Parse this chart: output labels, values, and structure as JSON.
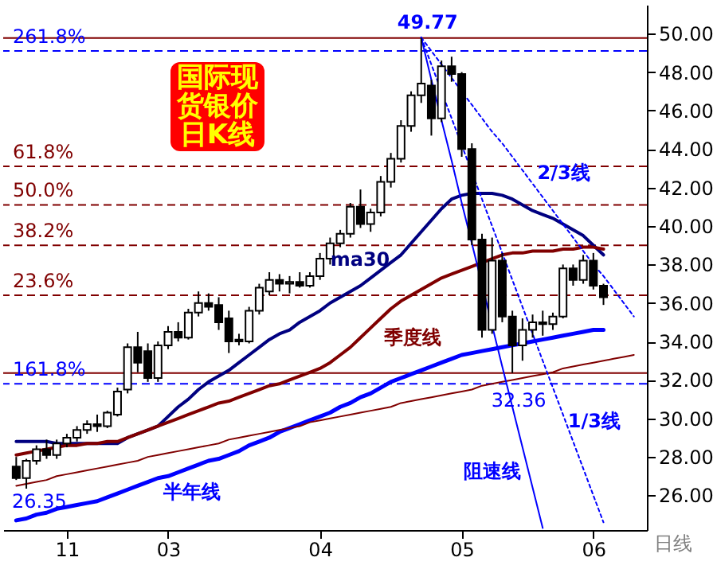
{
  "chart_data": {
    "type": "candlestick",
    "title": "国际现货银价日K线",
    "xlabel": "日线",
    "categories": [
      null,
      null,
      null,
      null,
      null,
      "11",
      null,
      null,
      null,
      null,
      null,
      null,
      null,
      null,
      null,
      "03",
      null,
      null,
      null,
      null,
      null,
      null,
      null,
      null,
      null,
      null,
      null,
      null,
      null,
      null,
      "04",
      null,
      null,
      null,
      null,
      null,
      null,
      null,
      null,
      null,
      null,
      null,
      null,
      null,
      "05",
      null,
      null,
      null,
      null,
      null,
      null,
      null,
      null,
      null,
      null,
      null,
      null,
      "06",
      null,
      null,
      null,
      null
    ],
    "ohlc": [
      [
        27.5,
        28.0,
        26.8,
        26.9
      ],
      [
        26.9,
        27.9,
        26.35,
        27.8
      ],
      [
        27.8,
        28.6,
        27.6,
        28.4
      ],
      [
        28.4,
        28.9,
        27.9,
        28.1
      ],
      [
        28.1,
        28.9,
        27.9,
        28.7
      ],
      [
        28.7,
        29.2,
        28.5,
        29.0
      ],
      [
        29.0,
        29.6,
        28.8,
        29.4
      ],
      [
        29.4,
        29.9,
        29.2,
        29.7
      ],
      [
        29.7,
        30.2,
        29.3,
        29.6
      ],
      [
        29.6,
        30.4,
        29.5,
        30.3
      ],
      [
        30.2,
        31.6,
        30.1,
        31.4
      ],
      [
        31.5,
        33.9,
        31.3,
        33.7
      ],
      [
        33.7,
        34.5,
        32.4,
        32.9
      ],
      [
        33.5,
        33.9,
        31.9,
        32.1
      ],
      [
        32.1,
        34.0,
        31.9,
        33.8
      ],
      [
        33.8,
        34.8,
        33.6,
        34.5
      ],
      [
        34.5,
        35.0,
        34.0,
        34.2
      ],
      [
        34.2,
        35.7,
        34.1,
        35.5
      ],
      [
        35.5,
        36.6,
        35.3,
        36.0
      ],
      [
        36.0,
        36.5,
        35.6,
        35.8
      ],
      [
        35.9,
        36.3,
        34.6,
        35.0
      ],
      [
        35.2,
        35.6,
        33.4,
        34.0
      ],
      [
        34.1,
        34.4,
        33.8,
        34.0
      ],
      [
        34.0,
        35.8,
        33.9,
        35.6
      ],
      [
        35.6,
        37.0,
        35.4,
        36.8
      ],
      [
        36.6,
        37.6,
        36.4,
        37.2
      ],
      [
        37.2,
        37.5,
        36.6,
        37.0
      ],
      [
        37.0,
        37.4,
        36.5,
        37.1
      ],
      [
        37.1,
        37.6,
        36.8,
        36.9
      ],
      [
        36.9,
        37.6,
        36.8,
        37.4
      ],
      [
        37.4,
        38.6,
        37.2,
        38.3
      ],
      [
        38.3,
        39.4,
        38.0,
        39.1
      ],
      [
        39.1,
        39.8,
        38.9,
        39.6
      ],
      [
        39.6,
        41.2,
        39.4,
        41.0
      ],
      [
        41.0,
        41.9,
        39.9,
        40.1
      ],
      [
        40.1,
        40.9,
        39.7,
        40.7
      ],
      [
        40.7,
        42.6,
        40.5,
        42.3
      ],
      [
        42.3,
        43.8,
        42.0,
        43.5
      ],
      [
        43.5,
        45.5,
        43.3,
        45.2
      ],
      [
        45.2,
        47.0,
        44.9,
        46.8
      ],
      [
        46.8,
        49.77,
        46.4,
        47.4
      ],
      [
        47.3,
        47.6,
        44.7,
        45.6
      ],
      [
        45.6,
        48.6,
        45.4,
        48.3
      ],
      [
        48.3,
        48.8,
        47.5,
        47.9
      ],
      [
        47.9,
        48.0,
        43.6,
        44.0
      ],
      [
        44.0,
        44.3,
        39.0,
        39.3
      ],
      [
        39.3,
        39.6,
        34.2,
        34.6
      ],
      [
        34.6,
        39.4,
        34.4,
        38.2
      ],
      [
        38.2,
        38.6,
        35.0,
        35.3
      ],
      [
        35.3,
        35.6,
        32.36,
        33.8
      ],
      [
        33.8,
        35.2,
        33.0,
        34.6
      ],
      [
        34.6,
        35.4,
        34.2,
        35.0
      ],
      [
        35.0,
        35.6,
        34.3,
        34.9
      ],
      [
        34.9,
        35.5,
        34.6,
        35.3
      ],
      [
        35.3,
        38.0,
        35.2,
        37.8
      ],
      [
        37.8,
        38.0,
        36.9,
        37.2
      ],
      [
        37.2,
        38.5,
        37.0,
        38.2
      ],
      [
        38.2,
        38.6,
        36.7,
        36.9
      ],
      [
        36.9,
        37.0,
        35.9,
        36.3
      ],
      null,
      null,
      null
    ],
    "ylim": [
      24.2,
      51.5
    ],
    "yticks": [
      {
        "value": 26,
        "label": "26.00"
      },
      {
        "value": 28,
        "label": "28.00"
      },
      {
        "value": 30,
        "label": "30.00"
      },
      {
        "value": 32,
        "label": "32.00"
      },
      {
        "value": 34,
        "label": "34.00"
      },
      {
        "value": 36,
        "label": "36.00"
      },
      {
        "value": 38,
        "label": "38.00"
      },
      {
        "value": 40,
        "label": "40.00"
      },
      {
        "value": 42,
        "label": "42.00"
      },
      {
        "value": 44,
        "label": "44.00"
      },
      {
        "value": 46,
        "label": "46.00"
      },
      {
        "value": 48,
        "label": "48.00"
      },
      {
        "value": 50,
        "label": "50.00"
      }
    ],
    "series": [
      {
        "name": "ma30",
        "type": "line",
        "color": "#000080",
        "values": [
          28.8,
          28.8,
          28.8,
          28.8,
          28.7,
          28.7,
          28.7,
          28.7,
          28.7,
          28.7,
          28.7,
          29.0,
          29.2,
          29.4,
          29.6,
          30.1,
          30.6,
          31.0,
          31.5,
          31.9,
          32.2,
          32.5,
          32.9,
          33.3,
          33.7,
          34.1,
          34.4,
          34.6,
          35.0,
          35.3,
          35.6,
          36.0,
          36.3,
          36.6,
          36.9,
          37.3,
          37.7,
          38.1,
          38.5,
          39.1,
          39.7,
          40.3,
          40.9,
          41.4,
          41.6,
          41.7,
          41.7,
          41.7,
          41.6,
          41.4,
          41.1,
          40.8,
          40.6,
          40.4,
          40.1,
          39.8,
          39.5,
          39.0,
          38.5,
          null,
          null,
          null
        ]
      },
      {
        "name": "季度线",
        "type": "line",
        "color": "#800000",
        "values": [
          28.1,
          28.2,
          28.3,
          28.4,
          28.5,
          28.6,
          28.6,
          28.7,
          28.7,
          28.8,
          28.8,
          29.0,
          29.2,
          29.4,
          29.6,
          29.8,
          30.0,
          30.2,
          30.4,
          30.6,
          30.8,
          30.9,
          31.1,
          31.3,
          31.5,
          31.7,
          31.8,
          32.0,
          32.2,
          32.4,
          32.6,
          32.9,
          33.3,
          33.7,
          34.2,
          34.7,
          35.2,
          35.7,
          36.1,
          36.4,
          36.7,
          37.0,
          37.3,
          37.5,
          37.7,
          37.9,
          38.1,
          38.3,
          38.5,
          38.6,
          38.6,
          38.7,
          38.7,
          38.7,
          38.8,
          38.8,
          38.9,
          38.9,
          38.8,
          null,
          null,
          null
        ]
      },
      {
        "name": "半年线",
        "type": "line",
        "color": "#0000ff",
        "values": [
          24.7,
          24.8,
          25.0,
          25.1,
          25.3,
          25.4,
          25.5,
          25.6,
          25.7,
          25.9,
          26.1,
          26.3,
          26.5,
          26.7,
          26.9,
          27.0,
          27.2,
          27.4,
          27.6,
          27.8,
          27.9,
          28.1,
          28.3,
          28.6,
          28.8,
          29.0,
          29.3,
          29.5,
          29.7,
          29.9,
          30.1,
          30.3,
          30.6,
          30.8,
          31.1,
          31.3,
          31.6,
          31.9,
          32.1,
          32.3,
          32.5,
          32.7,
          32.9,
          33.1,
          33.3,
          33.4,
          33.5,
          33.6,
          33.7,
          33.8,
          33.9,
          34.0,
          34.1,
          34.2,
          34.3,
          34.4,
          34.5,
          34.6,
          34.6,
          null,
          null,
          null
        ]
      },
      {
        "type": "line",
        "color": "#800000",
        "values": [
          26.5,
          26.6,
          26.7,
          26.8,
          27.0,
          27.1,
          27.2,
          27.3,
          27.4,
          27.5,
          27.6,
          27.7,
          27.8,
          28.0,
          28.1,
          28.2,
          28.3,
          28.4,
          28.5,
          28.6,
          28.7,
          28.9,
          29.0,
          29.1,
          29.2,
          29.3,
          29.4,
          29.5,
          29.6,
          29.8,
          29.9,
          30.0,
          30.1,
          30.2,
          30.3,
          30.4,
          30.5,
          30.6,
          30.8,
          30.9,
          31.0,
          31.1,
          31.2,
          31.3,
          31.4,
          31.5,
          31.7,
          31.8,
          31.9,
          32.0,
          32.1,
          32.2,
          32.3,
          32.4,
          32.6,
          32.7,
          32.8,
          32.9,
          33.0,
          33.1,
          33.2,
          33.3
        ]
      },
      {
        "name": "阻速线",
        "type": "line",
        "color": "#0000ff",
        "line_style": "solid",
        "values": [
          null,
          null,
          null,
          null,
          null,
          null,
          null,
          null,
          null,
          null,
          null,
          null,
          null,
          null,
          null,
          null,
          null,
          null,
          null,
          null,
          null,
          null,
          null,
          null,
          null,
          null,
          null,
          null,
          null,
          null,
          null,
          null,
          null,
          null,
          null,
          null,
          null,
          null,
          null,
          null,
          49.8,
          47.6,
          45.5,
          43.4,
          41.2,
          39.1,
          null,
          null,
          32.7,
          30.6,
          28.5,
          26.4,
          24.3,
          null,
          null,
          null,
          null,
          null,
          null,
          null,
          null,
          null
        ]
      },
      {
        "name": "1/3线",
        "type": "line",
        "color": "#0000ff",
        "line_style": "dotted",
        "values": [
          null,
          null,
          null,
          null,
          null,
          null,
          null,
          null,
          null,
          null,
          null,
          null,
          null,
          null,
          null,
          null,
          null,
          null,
          null,
          null,
          null,
          null,
          null,
          null,
          null,
          null,
          null,
          null,
          null,
          null,
          null,
          null,
          null,
          null,
          null,
          null,
          null,
          null,
          null,
          null,
          49.8,
          48.4,
          47.0,
          45.6,
          44.2,
          null,
          41.4,
          40.0,
          38.6,
          37.2,
          35.8,
          34.4,
          33.0,
          31.6,
          30.2,
          28.8,
          27.4,
          26.0,
          24.6,
          null,
          null,
          null
        ]
      },
      {
        "name": "2/3线",
        "type": "line",
        "color": "#0000ff",
        "line_style": "dotted",
        "values": [
          null,
          null,
          null,
          null,
          null,
          null,
          null,
          null,
          null,
          null,
          null,
          null,
          null,
          null,
          null,
          null,
          null,
          null,
          null,
          null,
          null,
          null,
          null,
          null,
          null,
          null,
          null,
          null,
          null,
          null,
          null,
          null,
          null,
          null,
          null,
          null,
          null,
          null,
          null,
          null,
          49.8,
          49.1,
          48.4,
          47.7,
          47.0,
          46.3,
          45.6,
          44.9,
          44.3,
          43.6,
          42.9,
          42.2,
          41.5,
          40.8,
          40.1,
          39.4,
          38.7,
          38.0,
          37.4,
          36.7,
          36.0,
          35.3
        ]
      }
    ],
    "ref_lines": [
      {
        "axis": "y",
        "value": 49.77,
        "color": "#800000",
        "line_style": "solid"
      },
      {
        "axis": "y",
        "value": 49.1,
        "color": "#0000ff",
        "line_style": "dashed"
      },
      {
        "axis": "y",
        "value": 43.1,
        "color": "#800000",
        "line_style": "dashed"
      },
      {
        "axis": "y",
        "value": 41.1,
        "color": "#800000",
        "line_style": "dashed"
      },
      {
        "axis": "y",
        "value": 39.0,
        "color": "#800000",
        "line_style": "dashed"
      },
      {
        "axis": "y",
        "value": 36.4,
        "color": "#800000",
        "line_style": "dashed"
      },
      {
        "axis": "y",
        "value": 32.36,
        "color": "#800000",
        "line_style": "solid"
      },
      {
        "axis": "y",
        "value": 31.8,
        "color": "#0000ff",
        "line_style": "dashed"
      }
    ],
    "annotations": [
      {
        "text": "49.77",
        "y": 49.77
      },
      {
        "text": "26.35",
        "y": 26.35
      },
      {
        "text": "32.36",
        "y": 32.36
      },
      {
        "text": "261.8%",
        "y": 49.1
      },
      {
        "text": "61.8%",
        "y": 43.1
      },
      {
        "text": "50.0%",
        "y": 41.1
      },
      {
        "text": "38.2%",
        "y": 39.0
      },
      {
        "text": "23.6%",
        "y": 36.4
      },
      {
        "text": "161.8%",
        "y": 31.8
      }
    ]
  }
}
